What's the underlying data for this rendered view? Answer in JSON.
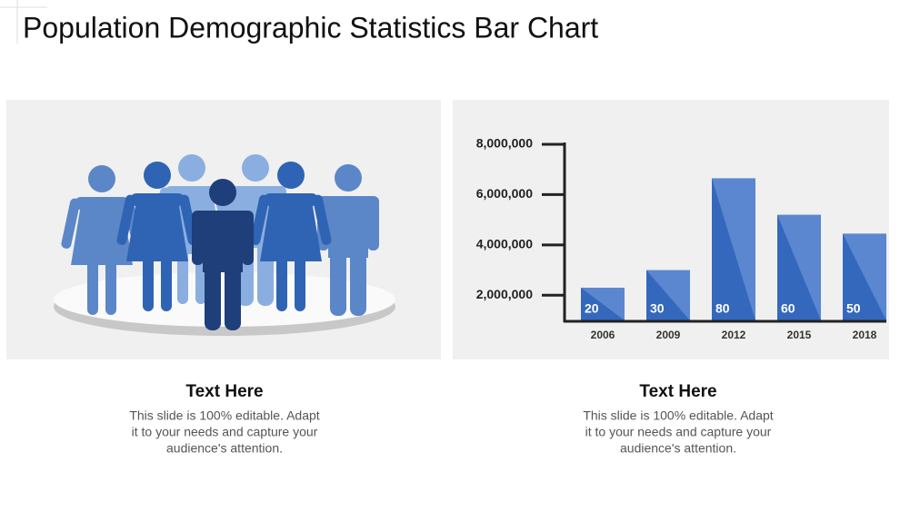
{
  "title": "Population Demographic Statistics Bar Chart",
  "chart_data": {
    "type": "bar",
    "categories": [
      "2006",
      "2009",
      "2012",
      "2015",
      "2018"
    ],
    "values": [
      2300000,
      3000000,
      6650000,
      5200000,
      4450000
    ],
    "bar_numbers": [
      20,
      30,
      80,
      60,
      50
    ],
    "color": "#5b87d0",
    "shade_color": "#3468bd",
    "ylim": [
      1000000,
      8000000
    ],
    "yticks": [
      {
        "value": 2000000,
        "label": "2,000,000"
      },
      {
        "value": 4000000,
        "label": "4,000,000"
      },
      {
        "value": 6000000,
        "label": "6,000,000"
      },
      {
        "value": 8000000,
        "label": "8,000,000"
      }
    ],
    "grid": false
  },
  "panels": [
    {
      "heading": "Text Here",
      "body": [
        "This slide is 100% editable. Adapt",
        "it to your needs and capture your",
        "audience's attention."
      ]
    },
    {
      "heading": "Text Here",
      "body": [
        "This slide is 100% editable. Adapt",
        "it to your needs and capture your",
        "audience's attention."
      ]
    }
  ]
}
